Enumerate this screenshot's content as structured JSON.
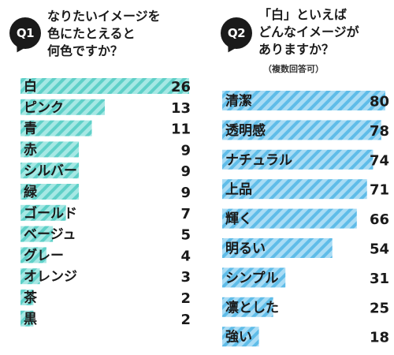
{
  "q1": {
    "badge": "Q1",
    "question": "なりたいイメージを\n色にたとえると\n何色ですか？"
  },
  "q2": {
    "badge": "Q2",
    "question": "「白」といえば\nどんなイメージが\nありますか？",
    "note": "（複数回答可）"
  },
  "colors": {
    "bar_fill": "#a6e8e4",
    "bar_stripe": "#5fd0c8",
    "bar2_fill": "#a9dcf5",
    "bar2_stripe": "#5fbce8"
  },
  "chart_data": [
    {
      "type": "bar",
      "orientation": "horizontal",
      "categories": [
        "白",
        "ピンク",
        "青",
        "赤",
        "シルバー",
        "緑",
        "ゴールド",
        "ベージュ",
        "グレー",
        "オレンジ",
        "茶",
        "黒"
      ],
      "values": [
        26,
        13,
        11,
        9,
        9,
        9,
        7,
        5,
        4,
        3,
        2,
        2
      ],
      "xlim": [
        0,
        26
      ]
    },
    {
      "type": "bar",
      "orientation": "horizontal",
      "categories": [
        "清潔",
        "透明感",
        "ナチュラル",
        "上品",
        "輝く",
        "明るい",
        "シンプル",
        "凛とした",
        "強い"
      ],
      "values": [
        80,
        78,
        74,
        71,
        66,
        54,
        31,
        25,
        18
      ],
      "xlim": [
        0,
        80
      ]
    }
  ]
}
